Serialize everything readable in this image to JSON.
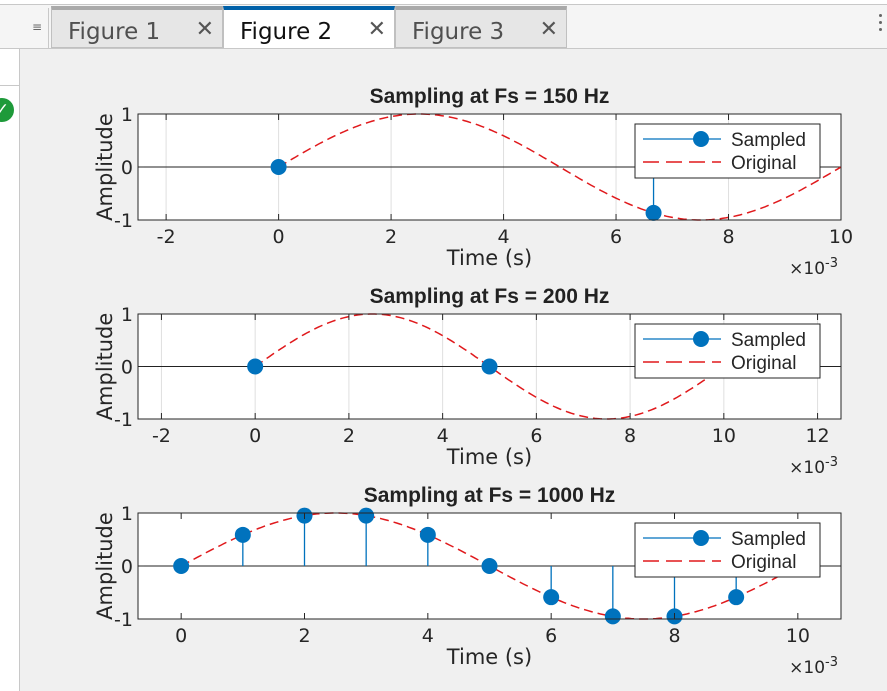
{
  "window": {
    "tabs": [
      {
        "label": "Figure 1",
        "active": false
      },
      {
        "label": "Figure 2",
        "active": true
      },
      {
        "label": "Figure 3",
        "active": false
      }
    ],
    "close_glyph": "✕",
    "accent": "#0060a8",
    "status_icon": "check-icon"
  },
  "chart_data": [
    {
      "type": "line",
      "title": "Sampling at Fs = 150 Hz",
      "xlabel": "Time (s)",
      "ylabel": "Amplitude",
      "xlim": [
        -0.0025,
        0.01
      ],
      "ylim": [
        -1,
        1
      ],
      "x_exponent": "×10",
      "x_exponent_power": "-3",
      "xticks": [
        -0.002,
        0,
        0.002,
        0.004,
        0.006,
        0.008,
        0.01
      ],
      "xtick_labels": [
        "-2",
        "0",
        "2",
        "4",
        "6",
        "8",
        "10"
      ],
      "yticks": [
        -1,
        0,
        1
      ],
      "ytick_labels": [
        "-1",
        "0",
        "1"
      ],
      "grid": "x",
      "legend": {
        "placement": "top-right",
        "entries": [
          "Sampled",
          "Original"
        ]
      },
      "series": [
        {
          "name": "Sampled",
          "kind": "stem",
          "color": "#0072bd",
          "x": [
            0,
            0.006667
          ],
          "y": [
            0,
            -0.866
          ]
        },
        {
          "name": "Original",
          "kind": "dashed",
          "color": "#e0191c",
          "function": "sin(2*pi*100*t)",
          "x_range": [
            0,
            0.01
          ]
        }
      ]
    },
    {
      "type": "line",
      "title": "Sampling at Fs = 200 Hz",
      "xlabel": "Time (s)",
      "ylabel": "Amplitude",
      "xlim": [
        -0.0025,
        0.0125
      ],
      "ylim": [
        -1,
        1
      ],
      "x_exponent": "×10",
      "x_exponent_power": "-3",
      "xticks": [
        -0.002,
        0,
        0.002,
        0.004,
        0.006,
        0.008,
        0.01,
        0.012
      ],
      "xtick_labels": [
        "-2",
        "0",
        "2",
        "4",
        "6",
        "8",
        "10",
        "12"
      ],
      "yticks": [
        -1,
        0,
        1
      ],
      "ytick_labels": [
        "-1",
        "0",
        "1"
      ],
      "grid": "x",
      "legend": {
        "placement": "top-right",
        "entries": [
          "Sampled",
          "Original"
        ]
      },
      "series": [
        {
          "name": "Sampled",
          "kind": "stem",
          "color": "#0072bd",
          "x": [
            0,
            0.005
          ],
          "y": [
            0,
            0
          ]
        },
        {
          "name": "Original",
          "kind": "dashed",
          "color": "#e0191c",
          "function": "sin(2*pi*100*t)",
          "x_range": [
            0,
            0.01
          ]
        }
      ]
    },
    {
      "type": "line",
      "title": "Sampling at Fs = 1000 Hz",
      "xlabel": "Time (s)",
      "ylabel": "Amplitude",
      "xlim": [
        -0.0007,
        0.0107
      ],
      "ylim": [
        -1,
        1
      ],
      "x_exponent": "×10",
      "x_exponent_power": "-3",
      "xticks": [
        0,
        0.002,
        0.004,
        0.006,
        0.008,
        0.01
      ],
      "xtick_labels": [
        "0",
        "2",
        "4",
        "6",
        "8",
        "10"
      ],
      "yticks": [
        -1,
        0,
        1
      ],
      "ytick_labels": [
        "-1",
        "0",
        "1"
      ],
      "grid": "none",
      "legend": {
        "placement": "top-right",
        "entries": [
          "Sampled",
          "Original"
        ]
      },
      "series": [
        {
          "name": "Sampled",
          "kind": "stem",
          "color": "#0072bd",
          "x": [
            0,
            0.001,
            0.002,
            0.003,
            0.004,
            0.005,
            0.006,
            0.007,
            0.008,
            0.009
          ],
          "y": [
            0,
            0.588,
            0.951,
            0.951,
            0.588,
            0,
            -0.588,
            -0.951,
            -0.951,
            -0.588
          ]
        },
        {
          "name": "Original",
          "kind": "dashed",
          "color": "#e0191c",
          "function": "sin(2*pi*100*t)",
          "x_range": [
            0,
            0.01
          ]
        }
      ]
    }
  ]
}
